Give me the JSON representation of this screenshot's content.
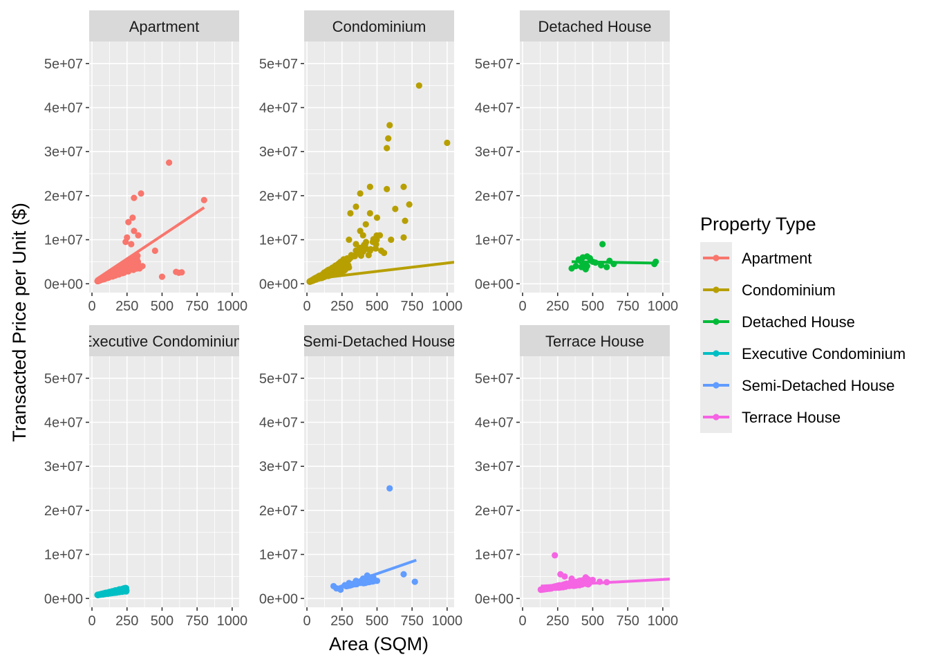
{
  "chart_data": {
    "type": "scatter",
    "xlabel": "Area (SQM)",
    "ylabel": "Transacted Price per Unit ($)",
    "xlim": [
      -20,
      1050
    ],
    "ylim": [
      -2000000,
      55000000
    ],
    "x_ticks": [
      0,
      250,
      500,
      750,
      1000
    ],
    "x_tick_labels": [
      "0",
      "250",
      "500",
      "750",
      "1000"
    ],
    "y_ticks": [
      0,
      10000000,
      20000000,
      30000000,
      40000000,
      50000000
    ],
    "y_tick_labels": [
      "0e+00",
      "1e+07",
      "2e+07",
      "3e+07",
      "4e+07",
      "5e+07"
    ],
    "grid": true,
    "legend": {
      "title": "Property Type",
      "position": "right",
      "entries": [
        "Apartment",
        "Condominium",
        "Detached House",
        "Executive Condominium",
        "Semi-Detached House",
        "Terrace House"
      ]
    },
    "facets": [
      {
        "name": "Apartment",
        "strip_label": "Apartment",
        "color": "#F8766D",
        "clusters": [
          {
            "x": [
              40,
              330
            ],
            "y": [
              600000,
              7500000
            ],
            "n": 320
          }
        ],
        "points": [
          [
            550,
            27500000
          ],
          [
            350,
            20500000
          ],
          [
            800,
            19000000
          ],
          [
            300,
            19500000
          ],
          [
            290,
            15000000
          ],
          [
            260,
            14000000
          ],
          [
            300,
            12000000
          ],
          [
            330,
            11000000
          ],
          [
            250,
            10500000
          ],
          [
            280,
            9000000
          ],
          [
            240,
            9500000
          ],
          [
            450,
            7500000
          ],
          [
            600,
            2700000
          ],
          [
            640,
            2600000
          ],
          [
            620,
            2500000
          ],
          [
            500,
            1600000
          ],
          [
            340,
            3500000
          ],
          [
            360,
            4000000
          ]
        ],
        "trend": {
          "x": [
            30,
            800
          ],
          "y": [
            1000000,
            17300000
          ]
        }
      },
      {
        "name": "Condominium",
        "strip_label": "Condominium",
        "color": "#B79F00",
        "clusters": [
          {
            "x": [
              20,
              300
            ],
            "y": [
              500000,
              7000000
            ],
            "n": 380
          },
          {
            "x": [
              200,
              500
            ],
            "y": [
              4000000,
              13000000
            ],
            "n": 45
          }
        ],
        "points": [
          [
            800,
            45000000
          ],
          [
            590,
            36000000
          ],
          [
            580,
            33000000
          ],
          [
            570,
            30800000
          ],
          [
            1000,
            32000000
          ],
          [
            450,
            22000000
          ],
          [
            570,
            21500000
          ],
          [
            380,
            20500000
          ],
          [
            690,
            22000000
          ],
          [
            350,
            17500000
          ],
          [
            310,
            16000000
          ],
          [
            450,
            16000000
          ],
          [
            630,
            17000000
          ],
          [
            700,
            14300000
          ],
          [
            730,
            18000000
          ],
          [
            500,
            15000000
          ],
          [
            420,
            13500000
          ],
          [
            520,
            11000000
          ],
          [
            600,
            10000000
          ],
          [
            380,
            12000000
          ],
          [
            490,
            8000000
          ],
          [
            470,
            9500000
          ],
          [
            400,
            11000000
          ],
          [
            550,
            7000000
          ],
          [
            450,
            7500000
          ],
          [
            350,
            9000000
          ],
          [
            300,
            10000000
          ],
          [
            690,
            10500000
          ],
          [
            530,
            7500000
          ],
          [
            440,
            6500000
          ]
        ],
        "trend": {
          "x": [
            20,
            1050
          ],
          "y": [
            1000000,
            4900000
          ]
        }
      },
      {
        "name": "Detached House",
        "strip_label": "Detached House",
        "color": "#00BA38",
        "clusters": [],
        "points": [
          [
            350,
            3500000
          ],
          [
            380,
            4000000
          ],
          [
            400,
            5500000
          ],
          [
            420,
            5000000
          ],
          [
            430,
            6000000
          ],
          [
            440,
            4500000
          ],
          [
            450,
            3300000
          ],
          [
            460,
            6200000
          ],
          [
            480,
            5800000
          ],
          [
            500,
            5000000
          ],
          [
            520,
            4800000
          ],
          [
            560,
            4200000
          ],
          [
            570,
            9000000
          ],
          [
            600,
            3800000
          ],
          [
            620,
            5200000
          ],
          [
            650,
            4500000
          ],
          [
            940,
            4500000
          ],
          [
            950,
            5000000
          ],
          [
            420,
            3800000
          ],
          [
            460,
            4000000
          ]
        ],
        "trend": {
          "x": [
            350,
            950
          ],
          "y": [
            5000000,
            4700000
          ]
        }
      },
      {
        "name": "Executive Condominium",
        "strip_label": "Executive Condominium",
        "color": "#00BFC4",
        "clusters": [
          {
            "x": [
              40,
              250
            ],
            "y": [
              800000,
              2800000
            ],
            "n": 220
          }
        ],
        "points": [],
        "trend": {
          "x": [
            40,
            250
          ],
          "y": [
            800000,
            2500000
          ]
        }
      },
      {
        "name": "Semi-Detached House",
        "strip_label": "Semi-Detached House",
        "color": "#619CFF",
        "clusters": [
          {
            "x": [
              280,
              480
            ],
            "y": [
              2800000,
              5300000
            ],
            "n": 60
          }
        ],
        "points": [
          [
            590,
            25000000
          ],
          [
            190,
            2800000
          ],
          [
            210,
            2300000
          ],
          [
            240,
            2000000
          ],
          [
            270,
            3000000
          ],
          [
            300,
            3500000
          ],
          [
            350,
            4000000
          ],
          [
            400,
            4500000
          ],
          [
            430,
            5200000
          ],
          [
            460,
            4800000
          ],
          [
            500,
            4000000
          ],
          [
            690,
            5500000
          ],
          [
            770,
            3800000
          ]
        ],
        "trend": {
          "x": [
            190,
            780
          ],
          "y": [
            2200000,
            8700000
          ]
        }
      },
      {
        "name": "Terrace House",
        "strip_label": "Terrace House",
        "color": "#F564E3",
        "clusters": [
          {
            "x": [
              130,
              480
            ],
            "y": [
              2000000,
              5000000
            ],
            "n": 200
          }
        ],
        "points": [
          [
            230,
            9800000
          ],
          [
            270,
            5500000
          ],
          [
            300,
            5000000
          ],
          [
            350,
            4500000
          ],
          [
            450,
            4800000
          ],
          [
            500,
            4200000
          ],
          [
            550,
            3800000
          ],
          [
            600,
            3700000
          ]
        ],
        "trend": {
          "x": [
            130,
            1050
          ],
          "y": [
            2800000,
            4400000
          ]
        }
      }
    ]
  }
}
